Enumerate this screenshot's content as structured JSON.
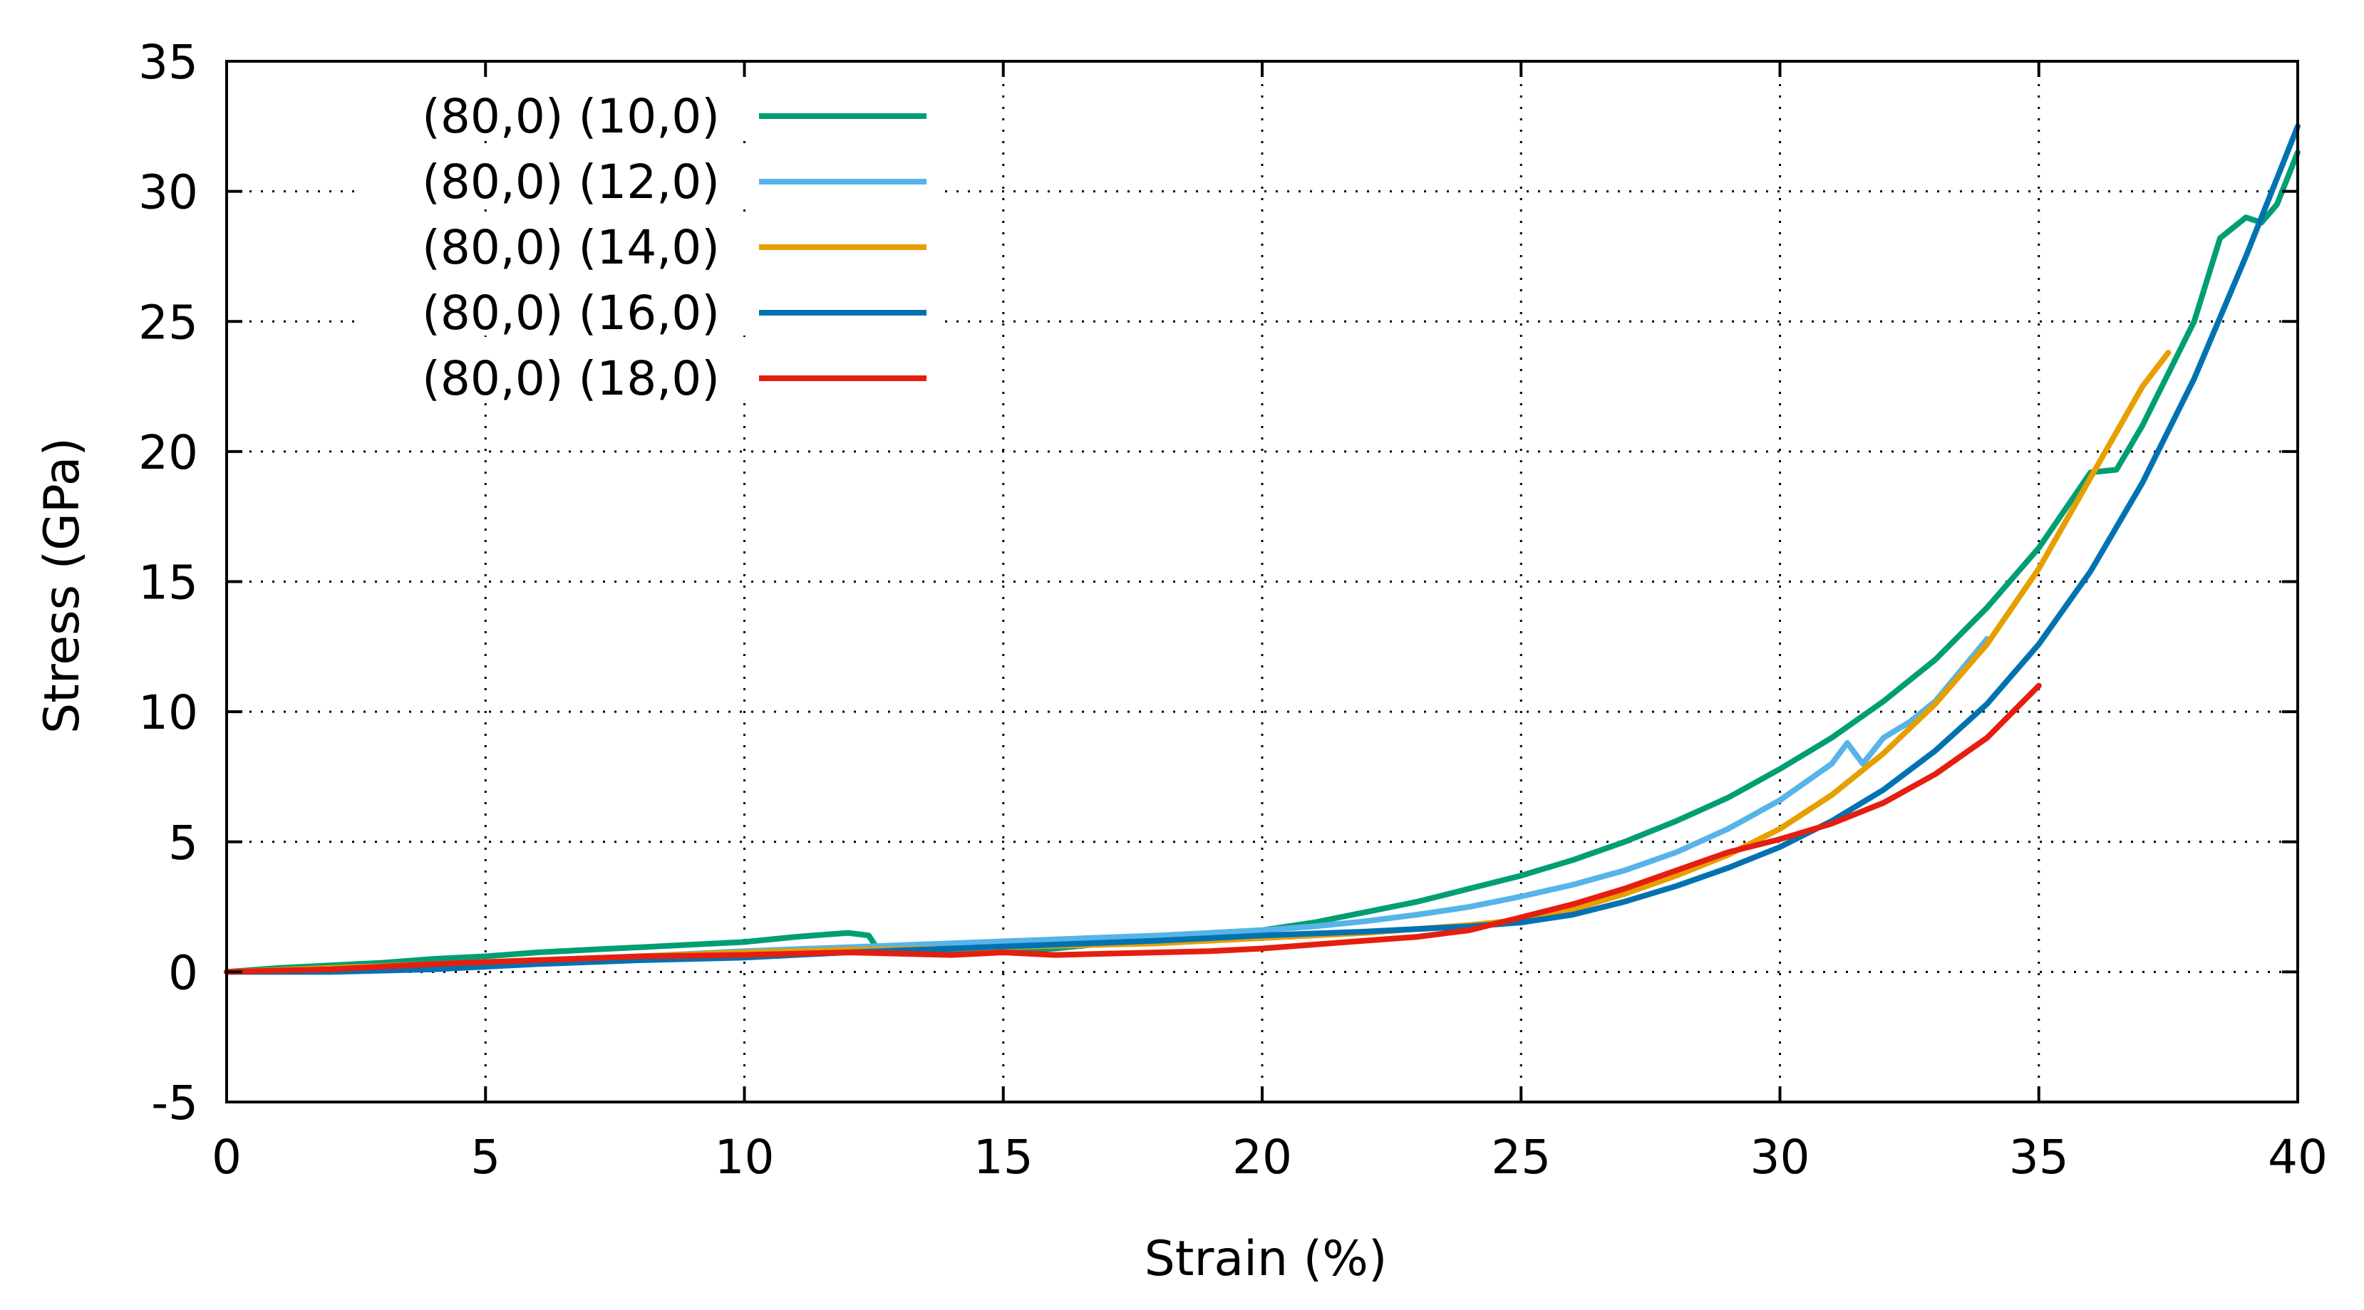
{
  "chart_data": {
    "type": "line",
    "title": "",
    "xlabel": "Strain (%)",
    "ylabel": "Stress (GPa)",
    "xlim": [
      0,
      40
    ],
    "ylim": [
      -5,
      35
    ],
    "xticks": [
      0,
      5,
      10,
      15,
      20,
      25,
      30,
      35,
      40
    ],
    "xtick_labels": [
      "0",
      "5",
      "10",
      "15",
      "20",
      "25",
      "30",
      "35",
      "40"
    ],
    "yticks": [
      -5,
      0,
      5,
      10,
      15,
      20,
      25,
      30,
      35
    ],
    "ytick_labels": [
      "-5",
      "0",
      "5",
      "10",
      "15",
      "20",
      "25",
      "30",
      "35"
    ],
    "grid": true,
    "legend_position": "top-left",
    "series": [
      {
        "name": "(80,0) (10,0)",
        "color": "#009e73",
        "x": [
          0,
          1,
          2,
          3,
          4,
          5,
          6,
          7,
          8,
          9,
          10,
          11,
          12,
          12.4,
          12.6,
          13,
          14,
          15,
          16,
          17,
          18,
          19,
          20,
          21,
          22,
          23,
          24,
          25,
          26,
          27,
          28,
          29,
          30,
          31,
          32,
          33,
          34,
          35,
          36,
          36.5,
          37,
          38,
          38.5,
          39,
          39.3,
          39.6,
          40
        ],
        "y": [
          0,
          0.15,
          0.25,
          0.35,
          0.5,
          0.6,
          0.75,
          0.85,
          0.95,
          1.05,
          1.15,
          1.35,
          1.5,
          1.4,
          0.8,
          0.7,
          0.75,
          0.8,
          0.9,
          1.1,
          1.3,
          1.5,
          1.6,
          1.9,
          2.3,
          2.7,
          3.2,
          3.7,
          4.3,
          5.0,
          5.8,
          6.7,
          7.8,
          9.0,
          10.4,
          12.0,
          14.0,
          16.3,
          19.2,
          19.3,
          21.0,
          25.0,
          28.2,
          29.0,
          28.8,
          29.5,
          31.5
        ]
      },
      {
        "name": "(80,0) (12,0)",
        "color": "#56b4e9",
        "x": [
          0,
          2,
          4,
          6,
          8,
          10,
          12,
          14,
          16,
          18,
          19,
          20,
          21,
          22,
          23,
          24,
          25,
          26,
          27,
          28,
          29,
          30,
          31,
          31.3,
          31.6,
          32,
          32.5,
          33,
          34
        ],
        "y": [
          0,
          0.1,
          0.3,
          0.45,
          0.6,
          0.8,
          0.95,
          1.1,
          1.25,
          1.4,
          1.5,
          1.6,
          1.75,
          1.95,
          2.2,
          2.5,
          2.9,
          3.35,
          3.9,
          4.6,
          5.5,
          6.6,
          8.0,
          8.8,
          8.0,
          9.0,
          9.6,
          10.4,
          12.8
        ]
      },
      {
        "name": "(80,0) (14,0)",
        "color": "#e69f00",
        "x": [
          0,
          2,
          4,
          6,
          8,
          10,
          12,
          14,
          16,
          18,
          20,
          22,
          24,
          25,
          26,
          27,
          28,
          29,
          30,
          31,
          32,
          33,
          34,
          35,
          36,
          37,
          37.5
        ],
        "y": [
          0,
          0.15,
          0.3,
          0.45,
          0.6,
          0.75,
          0.85,
          0.9,
          1.0,
          1.1,
          1.3,
          1.5,
          1.8,
          2.0,
          2.4,
          3.0,
          3.7,
          4.5,
          5.5,
          6.8,
          8.4,
          10.3,
          12.6,
          15.5,
          19.0,
          22.5,
          23.8
        ]
      },
      {
        "name": "(80,0) (16,0)",
        "color": "#0072b2",
        "x": [
          0,
          2,
          4,
          6,
          8,
          10,
          12,
          14,
          16,
          18,
          20,
          22,
          24,
          25,
          26,
          27,
          28,
          29,
          30,
          31,
          32,
          33,
          34,
          35,
          36,
          37,
          38,
          39,
          39.5,
          40
        ],
        "y": [
          0,
          0.0,
          0.1,
          0.3,
          0.45,
          0.55,
          0.75,
          0.9,
          1.05,
          1.2,
          1.4,
          1.55,
          1.75,
          1.9,
          2.2,
          2.7,
          3.3,
          4.0,
          4.8,
          5.8,
          7.0,
          8.5,
          10.3,
          12.6,
          15.4,
          18.8,
          22.8,
          27.5,
          30.0,
          32.5
        ]
      },
      {
        "name": "(80,0) (18,0)",
        "color": "#e51e10",
        "x": [
          0,
          2,
          4,
          6,
          8,
          10,
          11,
          12,
          13,
          14,
          15,
          16,
          17,
          18,
          19,
          20,
          21,
          22,
          23,
          24,
          25,
          26,
          27,
          28,
          29,
          30,
          31,
          32,
          33,
          34,
          35
        ],
        "y": [
          0,
          0.1,
          0.3,
          0.45,
          0.6,
          0.65,
          0.7,
          0.75,
          0.7,
          0.65,
          0.75,
          0.65,
          0.7,
          0.75,
          0.8,
          0.9,
          1.05,
          1.2,
          1.35,
          1.6,
          2.1,
          2.6,
          3.2,
          3.9,
          4.6,
          5.1,
          5.7,
          6.5,
          7.6,
          9.0,
          11.0
        ]
      }
    ]
  }
}
